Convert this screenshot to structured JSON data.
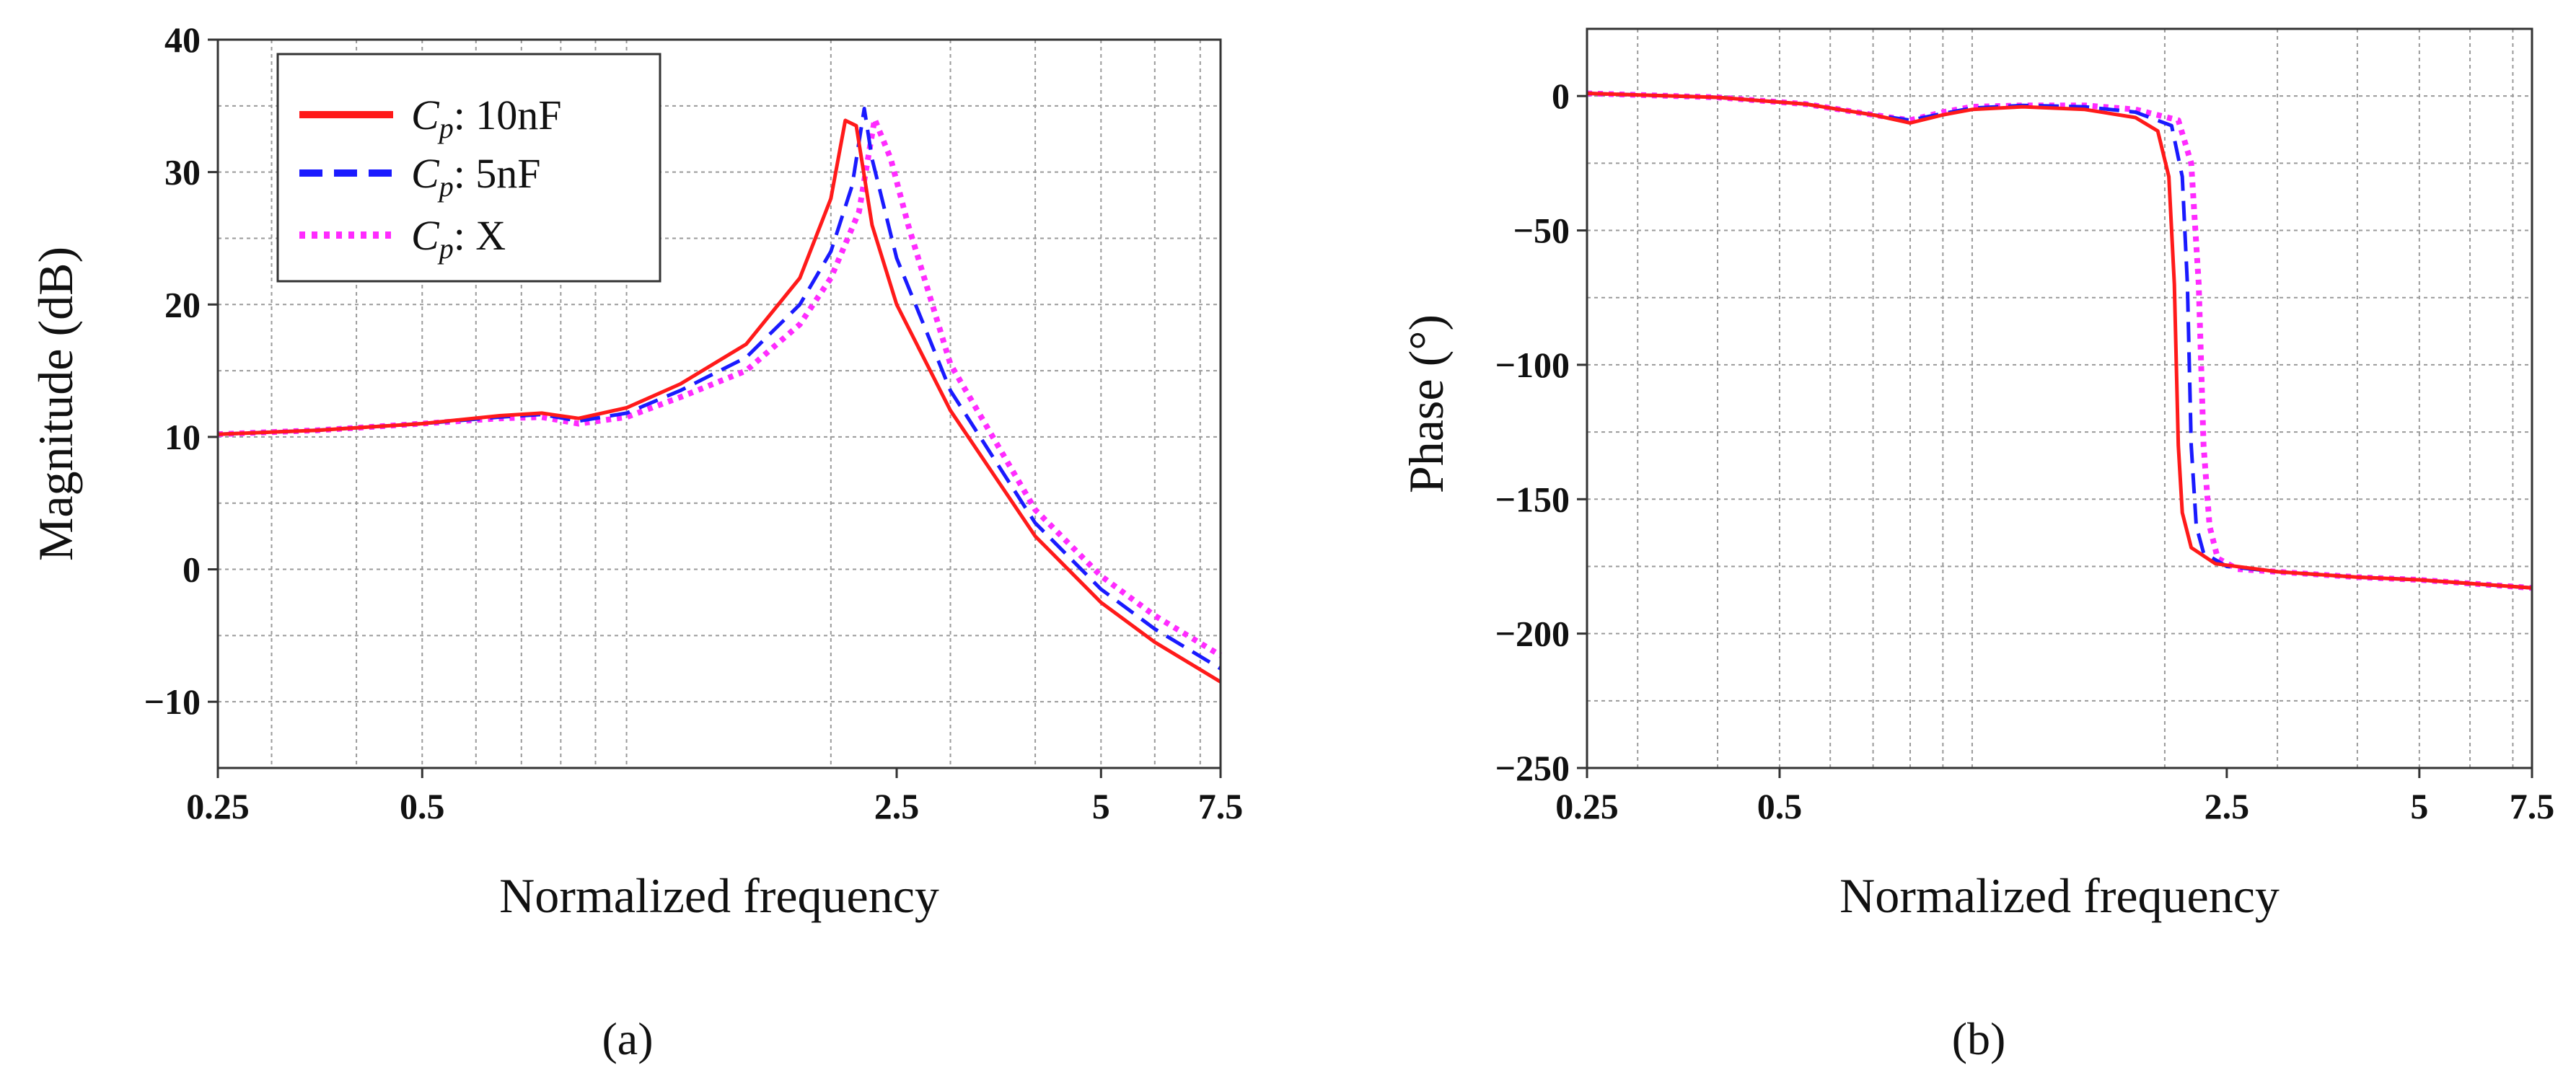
{
  "figure": {
    "panel_labels": [
      "(a)",
      "(b)"
    ]
  },
  "colors": {
    "series_10nF": "#ff1a1a",
    "series_5nF": "#1a1aff",
    "series_X": "#ff2bff",
    "grid": "#9a9a9a",
    "axis": "#333333"
  },
  "legend": {
    "symbol": "C",
    "subscript": "p",
    "items": [
      {
        "suffix": ": 10nF",
        "style": "solid"
      },
      {
        "suffix": ": 5nF",
        "style": "dashed"
      },
      {
        "suffix": ": X",
        "style": "dotted"
      }
    ]
  },
  "chart_data": [
    {
      "type": "line",
      "id": "a",
      "xlabel": "Normalized frequency",
      "ylabel": "Magnitude (dB)",
      "xscale": "log",
      "xlim": [
        0.25,
        7.5
      ],
      "ylim": [
        -15,
        40
      ],
      "xticks": [
        0.25,
        0.5,
        2.5,
        5,
        7.5
      ],
      "xtick_labels": [
        "0.25",
        "0.5",
        "2.5",
        "5",
        "7.5"
      ],
      "yticks": [
        -10,
        0,
        10,
        20,
        30,
        40
      ],
      "ytick_labels": [
        "−10",
        "0",
        "10",
        "20",
        "30",
        "40"
      ],
      "legend_position": "top-left",
      "series": [
        {
          "name": "Cp: 10nF",
          "x": [
            0.25,
            0.35,
            0.5,
            0.65,
            0.75,
            0.85,
            1.0,
            1.2,
            1.5,
            1.8,
            2.0,
            2.1,
            2.18,
            2.3,
            2.5,
            3.0,
            4.0,
            5.0,
            6.0,
            7.5
          ],
          "y": [
            10.2,
            10.5,
            11.0,
            11.6,
            11.8,
            11.4,
            12.2,
            14.0,
            17.0,
            22.0,
            28.0,
            33.9,
            33.5,
            26.0,
            20.0,
            12.0,
            2.5,
            -2.5,
            -5.5,
            -8.5
          ]
        },
        {
          "name": "Cp: 5nF",
          "x": [
            0.25,
            0.35,
            0.5,
            0.65,
            0.75,
            0.85,
            1.0,
            1.2,
            1.5,
            1.8,
            2.0,
            2.15,
            2.24,
            2.3,
            2.5,
            3.0,
            4.0,
            5.0,
            6.0,
            7.5
          ],
          "y": [
            10.2,
            10.5,
            11.0,
            11.5,
            11.7,
            11.2,
            11.8,
            13.5,
            16.0,
            20.0,
            24.0,
            29.0,
            34.8,
            31.0,
            23.5,
            13.5,
            3.5,
            -1.5,
            -4.5,
            -7.5
          ]
        },
        {
          "name": "Cp: X",
          "x": [
            0.25,
            0.35,
            0.5,
            0.65,
            0.75,
            0.85,
            1.0,
            1.2,
            1.5,
            1.8,
            2.0,
            2.2,
            2.32,
            2.45,
            2.6,
            3.0,
            4.0,
            5.0,
            6.0,
            7.5
          ],
          "y": [
            10.2,
            10.5,
            11.0,
            11.4,
            11.5,
            11.0,
            11.5,
            13.0,
            15.0,
            18.5,
            22.0,
            27.0,
            34.0,
            31.0,
            26.0,
            15.5,
            4.5,
            -0.5,
            -3.5,
            -6.5
          ]
        }
      ]
    },
    {
      "type": "line",
      "id": "b",
      "xlabel": "Normalized frequency",
      "ylabel": "Phase (°)",
      "xscale": "log",
      "xlim": [
        0.25,
        7.5
      ],
      "ylim": [
        -250,
        25
      ],
      "xticks": [
        0.25,
        0.5,
        2.5,
        5,
        7.5
      ],
      "xtick_labels": [
        "0.25",
        "0.5",
        "2.5",
        "5",
        "7.5"
      ],
      "yticks": [
        -250,
        -200,
        -150,
        -100,
        -50,
        0
      ],
      "ytick_labels": [
        "−250",
        "−200",
        "−150",
        "−100",
        "−50",
        "0"
      ],
      "series": [
        {
          "name": "Cp: 10nF",
          "x": [
            0.25,
            0.4,
            0.55,
            0.7,
            0.8,
            0.9,
            1.0,
            1.2,
            1.5,
            1.8,
            1.95,
            2.03,
            2.07,
            2.1,
            2.13,
            2.2,
            2.4,
            3.0,
            4.0,
            5.0,
            7.5
          ],
          "y": [
            1.0,
            -0.5,
            -3.0,
            -7.0,
            -10.0,
            -7.0,
            -5.0,
            -4.0,
            -5.0,
            -8.0,
            -13.0,
            -30.0,
            -70.0,
            -130.0,
            -155.0,
            -168.0,
            -174.0,
            -177.0,
            -179.0,
            -180.0,
            -183.0
          ]
        },
        {
          "name": "Cp: 5nF",
          "x": [
            0.25,
            0.4,
            0.55,
            0.7,
            0.8,
            0.9,
            1.0,
            1.2,
            1.5,
            1.8,
            2.05,
            2.13,
            2.17,
            2.2,
            2.24,
            2.3,
            2.5,
            3.0,
            4.0,
            5.0,
            7.5
          ],
          "y": [
            1.0,
            -0.5,
            -3.0,
            -7.0,
            -9.0,
            -6.5,
            -4.5,
            -3.5,
            -4.0,
            -6.0,
            -11.0,
            -30.0,
            -70.0,
            -130.0,
            -160.0,
            -170.0,
            -175.0,
            -177.0,
            -179.0,
            -180.0,
            -183.0
          ]
        },
        {
          "name": "Cp: X",
          "x": [
            0.25,
            0.4,
            0.55,
            0.7,
            0.8,
            0.9,
            1.0,
            1.2,
            1.5,
            1.8,
            2.1,
            2.2,
            2.26,
            2.3,
            2.35,
            2.42,
            2.6,
            3.0,
            4.0,
            5.0,
            7.5
          ],
          "y": [
            1.0,
            -0.5,
            -3.0,
            -7.0,
            -9.0,
            -6.0,
            -4.0,
            -3.5,
            -3.5,
            -5.0,
            -9.0,
            -25.0,
            -70.0,
            -130.0,
            -160.0,
            -172.0,
            -176.0,
            -177.0,
            -179.0,
            -180.0,
            -183.0
          ]
        }
      ]
    }
  ]
}
